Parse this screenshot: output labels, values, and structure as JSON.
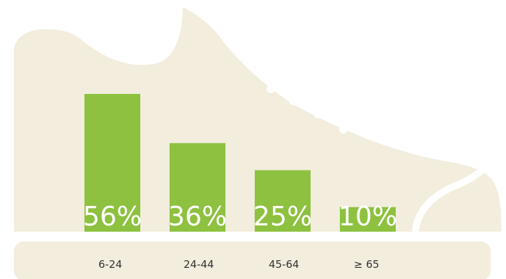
{
  "chart_data": {
    "type": "bar",
    "categories": [
      "6-24",
      "24-44",
      "45-64",
      "≥ 65"
    ],
    "values": [
      56,
      36,
      25,
      10
    ],
    "value_labels": [
      "56%",
      "36%",
      "25%",
      "10%"
    ],
    "color": "#8dc13f"
  }
}
